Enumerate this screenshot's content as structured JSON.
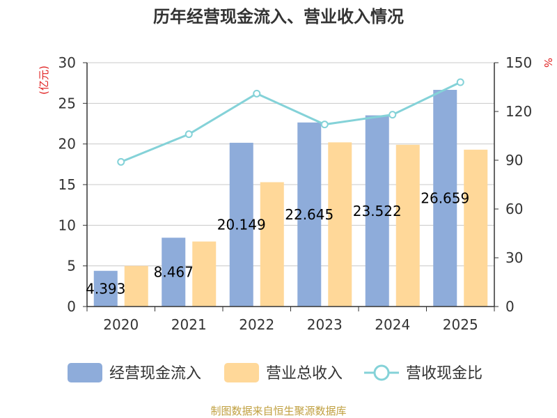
{
  "colors": {
    "bar1": "#8eacda",
    "bar2": "#ffd899",
    "line": "#84d2d8",
    "grid": "#c8c8c8",
    "axis": "#333333",
    "unit": "#e02020",
    "source": "#c0a040"
  },
  "chart_data": {
    "type": "bar",
    "title": "历年经营现金流入、营业收入情况",
    "categories": [
      "2020",
      "2021",
      "2022",
      "2023",
      "2024",
      "2025"
    ],
    "series": [
      {
        "name": "经营现金流入",
        "axis": "left",
        "kind": "bar",
        "values": [
          4.393,
          8.467,
          20.149,
          22.645,
          23.522,
          26.659
        ],
        "labels": [
          "4.393",
          "8.467",
          "20.149",
          "22.645",
          "23.522",
          "26.659"
        ]
      },
      {
        "name": "营业总收入",
        "axis": "left",
        "kind": "bar",
        "values": [
          5.0,
          8.0,
          15.3,
          20.2,
          19.9,
          19.3
        ]
      },
      {
        "name": "营收现金比",
        "axis": "right",
        "kind": "line",
        "values": [
          89,
          106,
          131,
          112,
          118,
          138
        ]
      }
    ],
    "y_left": {
      "label": "(亿元)",
      "ylim": [
        0,
        30
      ],
      "ticks": [
        "0",
        "5",
        "10",
        "15",
        "20",
        "25",
        "30"
      ]
    },
    "y_right": {
      "label": "%",
      "ylim": [
        0,
        150
      ],
      "ticks": [
        "0",
        "30",
        "60",
        "90",
        "120",
        "150"
      ]
    },
    "grid": true,
    "legend": [
      "经营现金流入",
      "营业总收入",
      "营收现金比"
    ],
    "legend_position": "bottom"
  },
  "source_text": "制图数据来自恒生聚源数据库"
}
